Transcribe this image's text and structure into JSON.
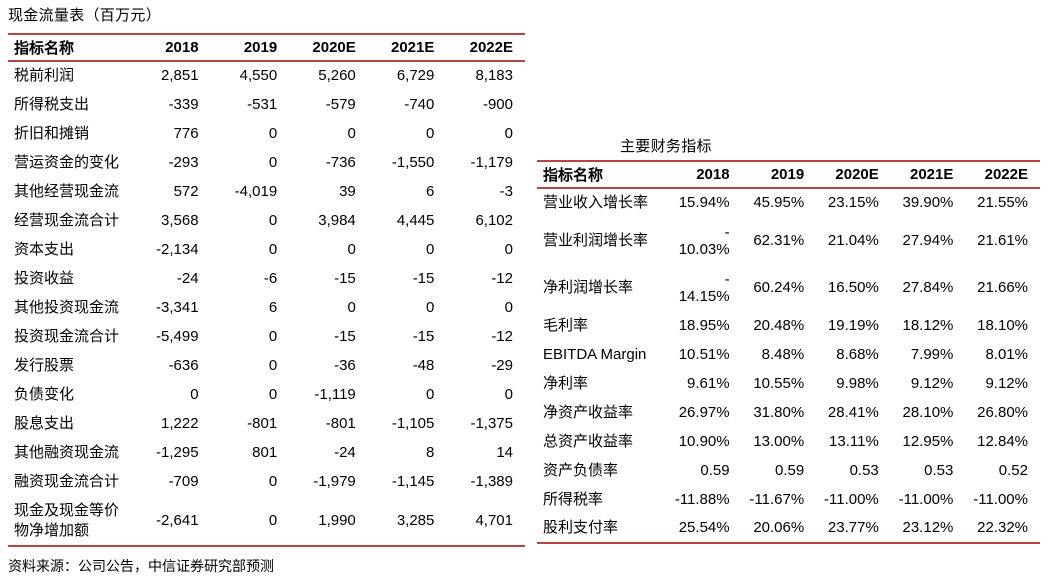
{
  "colors": {
    "rule_line": "#b94343",
    "text": "#000000",
    "background": "#ffffff"
  },
  "cash_flow_table": {
    "title": "现金流量表（百万元）",
    "columns": [
      "指标名称",
      "2018",
      "2019",
      "2020E",
      "2021E",
      "2022E"
    ],
    "rows": [
      {
        "label": "税前利润",
        "values": [
          "2,851",
          "4,550",
          "5,260",
          "6,729",
          "8,183"
        ]
      },
      {
        "label": "所得税支出",
        "values": [
          "-339",
          "-531",
          "-579",
          "-740",
          "-900"
        ]
      },
      {
        "label": "折旧和摊销",
        "values": [
          "776",
          "0",
          "0",
          "0",
          "0"
        ]
      },
      {
        "label": "营运资金的变化",
        "values": [
          "-293",
          "0",
          "-736",
          "-1,550",
          "-1,179"
        ]
      },
      {
        "label": "其他经营现金流",
        "values": [
          "572",
          "-4,019",
          "39",
          "6",
          "-3"
        ]
      },
      {
        "label": "经营现金流合计",
        "values": [
          "3,568",
          "0",
          "3,984",
          "4,445",
          "6,102"
        ]
      },
      {
        "label": "资本支出",
        "values": [
          "-2,134",
          "0",
          "0",
          "0",
          "0"
        ]
      },
      {
        "label": "投资收益",
        "values": [
          "-24",
          "-6",
          "-15",
          "-15",
          "-12"
        ]
      },
      {
        "label": "其他投资现金流",
        "values": [
          "-3,341",
          "6",
          "0",
          "0",
          "0"
        ]
      },
      {
        "label": "投资现金流合计",
        "values": [
          "-5,499",
          "0",
          "-15",
          "-15",
          "-12"
        ]
      },
      {
        "label": "发行股票",
        "values": [
          "-636",
          "0",
          "-36",
          "-48",
          "-29"
        ]
      },
      {
        "label": "负债变化",
        "values": [
          "0",
          "0",
          "-1,119",
          "0",
          "0"
        ]
      },
      {
        "label": "股息支出",
        "values": [
          "1,222",
          "-801",
          "-801",
          "-1,105",
          "-1,375"
        ]
      },
      {
        "label": "其他融资现金流",
        "values": [
          "-1,295",
          "801",
          "-24",
          "8",
          "14"
        ]
      },
      {
        "label": "融资现金流合计",
        "values": [
          "-709",
          "0",
          "-1,979",
          "-1,145",
          "-1,389"
        ]
      },
      {
        "label": "现金及现金等价物净增加额",
        "values": [
          "-2,641",
          "0",
          "1,990",
          "3,285",
          "4,701"
        ],
        "tall": true
      }
    ],
    "source_note": "资料来源：公司公告，中信证券研究部预测"
  },
  "financial_indicators_table": {
    "title": "主要财务指标",
    "columns": [
      "指标名称",
      "2018",
      "2019",
      "2020E",
      "2021E",
      "2022E"
    ],
    "rows": [
      {
        "label": "营业收入增长率",
        "values": [
          "15.94%",
          "45.95%",
          "23.15%",
          "39.90%",
          "21.55%"
        ]
      },
      {
        "label": "营业利润增长率",
        "values": [
          "-10.03%",
          "62.31%",
          "21.04%",
          "27.94%",
          "21.61%"
        ],
        "wrap_first": true
      },
      {
        "label": "净利润增长率",
        "values": [
          "-14.15%",
          "60.24%",
          "16.50%",
          "27.84%",
          "21.66%"
        ],
        "wrap_first": true
      },
      {
        "label": "毛利率",
        "values": [
          "18.95%",
          "20.48%",
          "19.19%",
          "18.12%",
          "18.10%"
        ]
      },
      {
        "label": "EBITDA Margin",
        "values": [
          "10.51%",
          "8.48%",
          "8.68%",
          "7.99%",
          "8.01%"
        ]
      },
      {
        "label": "净利率",
        "values": [
          "9.61%",
          "10.55%",
          "9.98%",
          "9.12%",
          "9.12%"
        ]
      },
      {
        "label": "净资产收益率",
        "values": [
          "26.97%",
          "31.80%",
          "28.41%",
          "28.10%",
          "26.80%"
        ]
      },
      {
        "label": "总资产收益率",
        "values": [
          "10.90%",
          "13.00%",
          "13.11%",
          "12.95%",
          "12.84%"
        ]
      },
      {
        "label": "资产负债率",
        "values": [
          "0.59",
          "0.59",
          "0.53",
          "0.53",
          "0.52"
        ]
      },
      {
        "label": "所得税率",
        "values": [
          "-11.88%",
          "-11.67%",
          "-11.00%",
          "-11.00%",
          "-11.00%"
        ]
      },
      {
        "label": "股利支付率",
        "values": [
          "25.54%",
          "20.06%",
          "23.77%",
          "23.12%",
          "22.32%"
        ]
      }
    ]
  }
}
